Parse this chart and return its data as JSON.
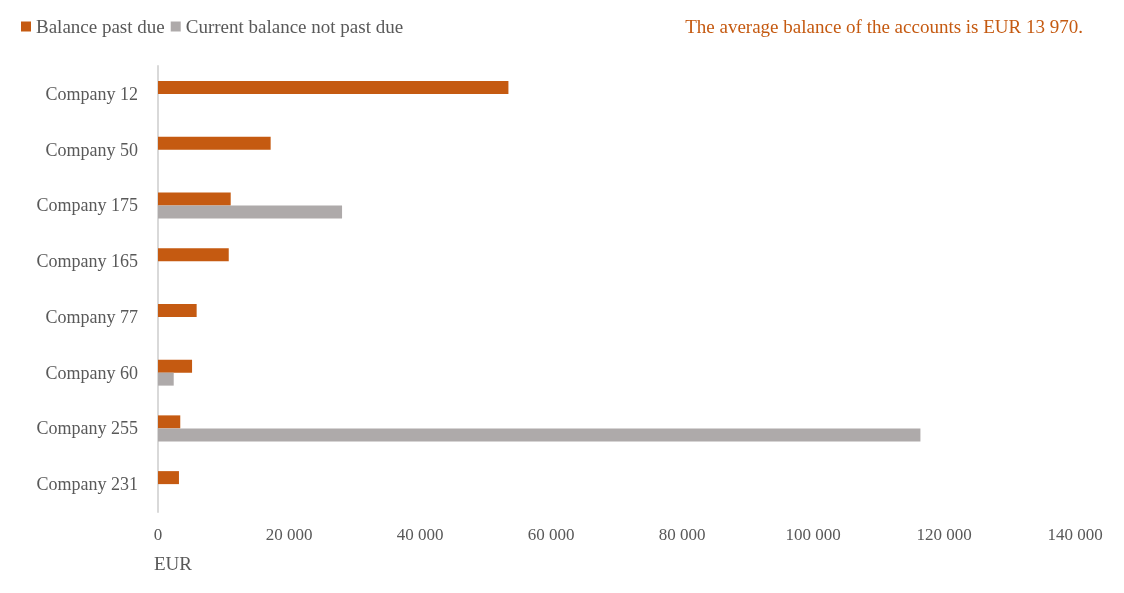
{
  "chart_data": {
    "type": "bar",
    "orientation": "horizontal",
    "title": "The average balance of the accounts is EUR 13 970.",
    "xlabel": "EUR",
    "categories": [
      "Company 12",
      "Company 50",
      "Company 175",
      "Company 165",
      "Company 77",
      "Company 60",
      "Company 255",
      "Company 231"
    ],
    "series": [
      {
        "name": "Balance past due",
        "color": "#c55a11",
        "values": [
          53500,
          17200,
          11100,
          10800,
          5900,
          5200,
          3400,
          3200
        ]
      },
      {
        "name": "Current balance not past due",
        "color": "#aeaaaa",
        "values": [
          null,
          null,
          28100,
          null,
          null,
          2400,
          116400,
          null
        ]
      }
    ],
    "xlim": [
      0,
      140000
    ],
    "xticks": [
      0,
      {
        "value": 20000,
        "label": "20 000"
      },
      {
        "value": 40000,
        "label": "40 000"
      },
      {
        "value": 60000,
        "label": "60 000"
      },
      {
        "value": 80000,
        "label": "80 000"
      },
      {
        "value": 100000,
        "label": "100 000"
      },
      {
        "value": 120000,
        "label": "120 000"
      },
      {
        "value": 140000,
        "label": "140 000"
      }
    ],
    "grid": false,
    "legend": "top left"
  }
}
